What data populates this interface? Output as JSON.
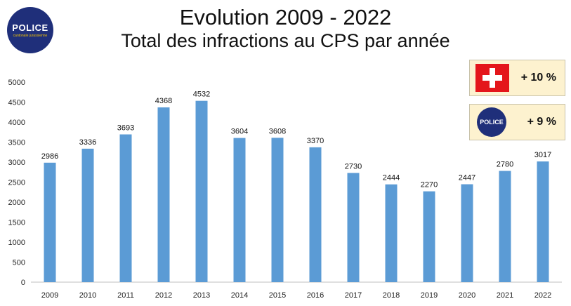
{
  "header": {
    "title": "Evolution 2009 - 2022",
    "subtitle": "Total des infractions au CPS par année"
  },
  "logo": {
    "word": "POLICE",
    "tagline": "cantonale jurassienne"
  },
  "badges": [
    {
      "icon": "swiss-flag-icon",
      "value": "+ 10 %"
    },
    {
      "icon": "police-logo-icon",
      "value": "+ 9 %"
    }
  ],
  "colors": {
    "bar": "#5b9bd5",
    "logo": "#1f2f7a",
    "badge_bg": "#fdf2cf",
    "flag": "#e4161b"
  },
  "chart_data": {
    "type": "bar",
    "categories": [
      "2009",
      "2010",
      "2011",
      "2012",
      "2013",
      "2014",
      "2015",
      "2016",
      "2017",
      "2018",
      "2019",
      "2020",
      "2021",
      "2022"
    ],
    "values": [
      2986,
      3336,
      3693,
      4368,
      4532,
      3604,
      3608,
      3370,
      2730,
      2444,
      2270,
      2447,
      2780,
      3017
    ],
    "title": "Total des infractions au CPS par année",
    "xlabel": "",
    "ylabel": "",
    "ylim": [
      0,
      5000
    ],
    "yticks": [
      0,
      500,
      1000,
      1500,
      2000,
      2500,
      3000,
      3500,
      4000,
      4500,
      5000
    ],
    "grid": false,
    "data_labels": true
  }
}
